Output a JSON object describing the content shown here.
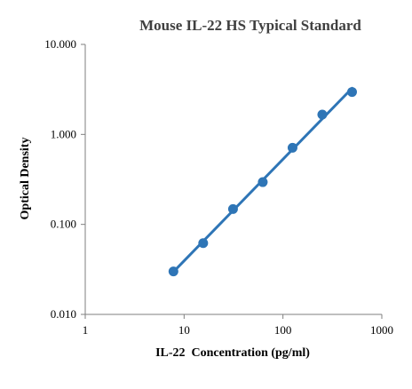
{
  "chart_data": {
    "type": "scatter",
    "title": "Mouse IL-22 HS Typical Standard",
    "xlabel": "IL-22  Concentration (pg/ml)",
    "ylabel": "Optical Density",
    "x_scale": "log",
    "y_scale": "log",
    "xlim": [
      1,
      1000
    ],
    "ylim": [
      0.01,
      10
    ],
    "x_ticks": [
      1,
      10,
      100,
      1000
    ],
    "x_tick_labels": [
      "1",
      "10",
      "100",
      "1000"
    ],
    "y_ticks": [
      0.01,
      0.1,
      1,
      10
    ],
    "y_tick_labels": [
      "0.010",
      "0.100",
      "1.000",
      "10.000"
    ],
    "grid": false,
    "series": [
      {
        "x": [
          7.8,
          15.6,
          31.25,
          62.5,
          125,
          250,
          500
        ],
        "y": [
          0.03,
          0.062,
          0.148,
          0.295,
          0.71,
          1.66,
          2.96
        ],
        "color": "#2e75b6",
        "trendline": "power"
      }
    ]
  }
}
